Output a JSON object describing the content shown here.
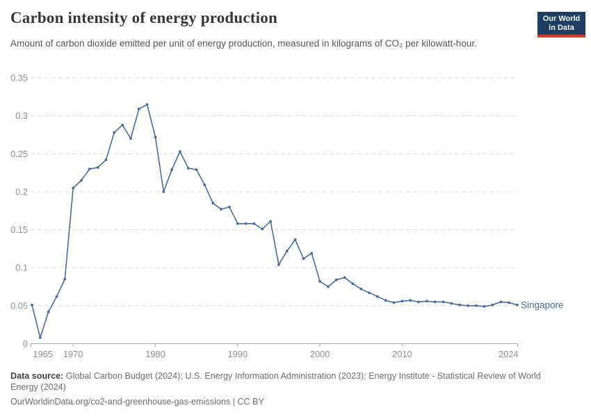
{
  "header": {
    "title": "Carbon intensity of energy production",
    "subtitle": "Amount of carbon dioxide emitted per unit of energy production, measured in kilograms of CO₂ per kilowatt-hour.",
    "logo_line1": "Our World",
    "logo_line2": "in Data"
  },
  "colors": {
    "line": "#4c6a9c",
    "logo_bg": "#1d3d63",
    "logo_accent": "#d93b2b",
    "gridline": "#dedede",
    "axis": "#a6a6a6",
    "tick_label": "#8f8f8f"
  },
  "chart_data": {
    "type": "line",
    "title": "Carbon intensity of energy production",
    "xlabel": "",
    "ylabel": "kilograms of CO₂ per kilowatt-hour",
    "xlim": [
      1965,
      2024
    ],
    "ylim": [
      0,
      0.35
    ],
    "x_ticks": [
      1965,
      1970,
      1980,
      1990,
      2000,
      2010,
      2024
    ],
    "y_ticks": [
      0,
      0.05,
      0.1,
      0.15,
      0.2,
      0.25,
      0.3,
      0.35
    ],
    "grid": "horizontal-dashed",
    "legend_position": "end-of-line-label",
    "series": [
      {
        "name": "Singapore",
        "color": "#4c6a9c",
        "x": [
          1965,
          1966,
          1967,
          1968,
          1969,
          1970,
          1971,
          1972,
          1973,
          1974,
          1975,
          1976,
          1977,
          1978,
          1979,
          1980,
          1981,
          1982,
          1983,
          1984,
          1985,
          1986,
          1987,
          1988,
          1989,
          1990,
          1991,
          1992,
          1993,
          1994,
          1995,
          1996,
          1997,
          1998,
          1999,
          2000,
          2001,
          2002,
          2003,
          2004,
          2005,
          2006,
          2007,
          2008,
          2009,
          2010,
          2011,
          2012,
          2013,
          2014,
          2015,
          2016,
          2017,
          2018,
          2019,
          2020,
          2021,
          2022,
          2023,
          2024
        ],
        "values": [
          0.051,
          0.008,
          0.042,
          0.062,
          0.085,
          0.205,
          0.215,
          0.23,
          0.232,
          0.242,
          0.278,
          0.288,
          0.27,
          0.309,
          0.315,
          0.272,
          0.2,
          0.229,
          0.253,
          0.231,
          0.229,
          0.209,
          0.185,
          0.177,
          0.18,
          0.158,
          0.158,
          0.158,
          0.151,
          0.161,
          0.104,
          0.122,
          0.137,
          0.112,
          0.119,
          0.082,
          0.075,
          0.084,
          0.087,
          0.079,
          0.072,
          0.067,
          0.062,
          0.057,
          0.054,
          0.056,
          0.057,
          0.055,
          0.056,
          0.055,
          0.055,
          0.053,
          0.051,
          0.05,
          0.05,
          0.049,
          0.051,
          0.055,
          0.054,
          0.051
        ]
      }
    ]
  },
  "footer": {
    "datasource_label": "Data source:",
    "datasource_text": " Global Carbon Budget (2024); U.S. Energy Information Administration (2023); Energy Institute - Statistical Review of World Energy (2024)",
    "url": "OurWorldinData.org/co2-and-greenhouse-gas-emissions",
    "separator": " | ",
    "license": "CC BY"
  }
}
